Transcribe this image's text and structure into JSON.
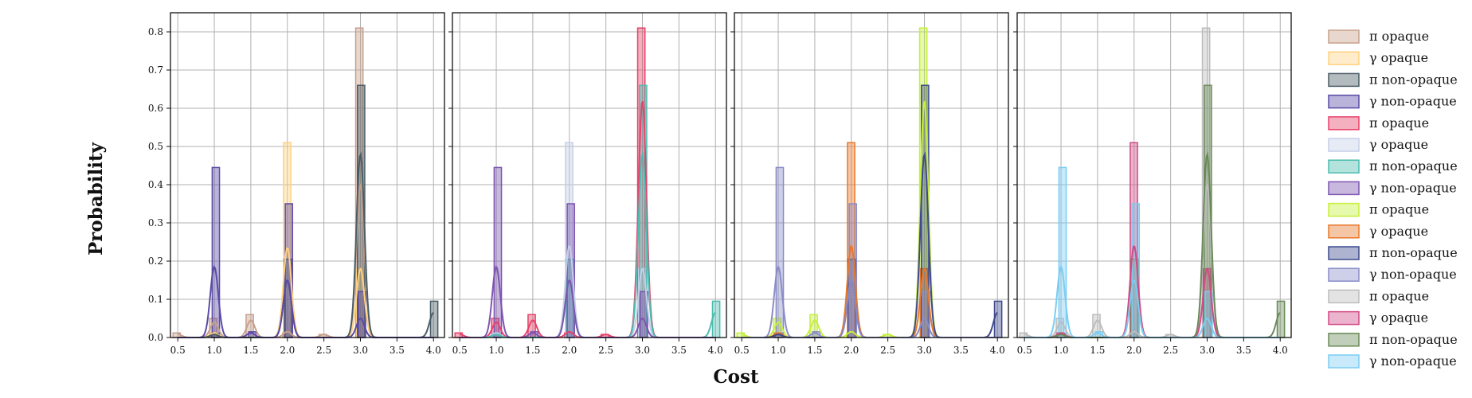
{
  "chart_data": {
    "type": "bar",
    "xlabel": "Cost",
    "ylabel": "Probability",
    "xlim": [
      0.4,
      4.15
    ],
    "ylim": [
      0,
      0.85
    ],
    "xticks": [
      "0.5",
      "1.0",
      "1.5",
      "2.0",
      "2.5",
      "3.0",
      "3.5",
      "4.0"
    ],
    "yticks": [
      "0.0",
      "0.1",
      "0.2",
      "0.3",
      "0.4",
      "0.5",
      "0.6",
      "0.7",
      "0.8"
    ],
    "grid": true,
    "legend_position": "right",
    "panels": [
      {
        "series": [
          {
            "name": "π opaque",
            "color": "#c8a08c",
            "hist": [
              [
                0.5,
                0.012
              ],
              [
                1.0,
                0.05
              ],
              [
                1.5,
                0.06
              ],
              [
                2.0,
                0.012
              ],
              [
                2.5,
                0.008
              ],
              [
                3.0,
                0.81
              ]
            ],
            "kde": [
              [
                0.5,
                0.008
              ],
              [
                1.0,
                0.04
              ],
              [
                1.5,
                0.045
              ],
              [
                2.0,
                0.015
              ],
              [
                2.5,
                0.008
              ],
              [
                3.0,
                0.4
              ]
            ]
          },
          {
            "name": "γ opaque",
            "color": "#ffd280",
            "hist": [
              [
                1.0,
                0.012
              ],
              [
                2.0,
                0.51
              ],
              [
                3.0,
                0.18
              ]
            ],
            "kde": [
              [
                1.0,
                0.012
              ],
              [
                2.0,
                0.235
              ],
              [
                3.0,
                0.18
              ]
            ]
          },
          {
            "name": "π non-opaque",
            "color": "#4a5d66",
            "hist": [
              [
                1.0,
                0.01
              ],
              [
                2.0,
                0.205
              ],
              [
                3.0,
                0.66
              ],
              [
                4.0,
                0.095
              ]
            ],
            "kde": [
              [
                1.0,
                0.008
              ],
              [
                2.0,
                0.15
              ],
              [
                3.0,
                0.48
              ],
              [
                4.0,
                0.065
              ]
            ]
          },
          {
            "name": "γ non-opaque",
            "color": "#5b4ba6",
            "hist": [
              [
                1.0,
                0.445
              ],
              [
                1.5,
                0.015
              ],
              [
                2.0,
                0.35
              ],
              [
                3.0,
                0.12
              ]
            ],
            "kde": [
              [
                1.0,
                0.185
              ],
              [
                1.5,
                0.012
              ],
              [
                2.0,
                0.15
              ],
              [
                3.0,
                0.05
              ]
            ]
          }
        ]
      },
      {
        "series": [
          {
            "name": "π opaque",
            "color": "#e8426a",
            "hist": [
              [
                0.5,
                0.012
              ],
              [
                1.0,
                0.05
              ],
              [
                1.5,
                0.06
              ],
              [
                2.0,
                0.012
              ],
              [
                2.5,
                0.008
              ],
              [
                3.0,
                0.81
              ]
            ],
            "kde": [
              [
                0.5,
                0.008
              ],
              [
                1.0,
                0.04
              ],
              [
                1.5,
                0.045
              ],
              [
                2.0,
                0.015
              ],
              [
                2.5,
                0.008
              ],
              [
                3.0,
                0.62
              ]
            ]
          },
          {
            "name": "γ opaque",
            "color": "#c5cfe8",
            "hist": [
              [
                1.0,
                0.012
              ],
              [
                2.0,
                0.51
              ],
              [
                3.0,
                0.18
              ]
            ],
            "kde": [
              [
                1.0,
                0.012
              ],
              [
                2.0,
                0.24
              ],
              [
                3.0,
                0.18
              ]
            ]
          },
          {
            "name": "π non-opaque",
            "color": "#4dbcb0",
            "hist": [
              [
                1.0,
                0.01
              ],
              [
                2.0,
                0.205
              ],
              [
                3.0,
                0.66
              ],
              [
                4.0,
                0.095
              ]
            ],
            "kde": [
              [
                1.0,
                0.008
              ],
              [
                2.0,
                0.15
              ],
              [
                3.0,
                0.48
              ],
              [
                4.0,
                0.065
              ]
            ]
          },
          {
            "name": "γ non-opaque",
            "color": "#7d55b0",
            "hist": [
              [
                1.0,
                0.445
              ],
              [
                1.5,
                0.015
              ],
              [
                2.0,
                0.35
              ],
              [
                3.0,
                0.12
              ]
            ],
            "kde": [
              [
                1.0,
                0.185
              ],
              [
                1.5,
                0.012
              ],
              [
                2.0,
                0.15
              ],
              [
                3.0,
                0.05
              ]
            ]
          }
        ]
      },
      {
        "series": [
          {
            "name": "π opaque",
            "color": "#c6f03c",
            "hist": [
              [
                0.5,
                0.012
              ],
              [
                1.0,
                0.05
              ],
              [
                1.5,
                0.06
              ],
              [
                2.0,
                0.012
              ],
              [
                2.5,
                0.008
              ],
              [
                3.0,
                0.81
              ]
            ],
            "kde": [
              [
                0.5,
                0.008
              ],
              [
                1.0,
                0.04
              ],
              [
                1.5,
                0.045
              ],
              [
                2.0,
                0.015
              ],
              [
                2.5,
                0.008
              ],
              [
                3.0,
                0.62
              ]
            ]
          },
          {
            "name": "γ opaque",
            "color": "#e8782a",
            "hist": [
              [
                1.0,
                0.012
              ],
              [
                2.0,
                0.51
              ],
              [
                3.0,
                0.18
              ]
            ],
            "kde": [
              [
                1.0,
                0.012
              ],
              [
                2.0,
                0.24
              ],
              [
                3.0,
                0.18
              ]
            ]
          },
          {
            "name": "π non-opaque",
            "color": "#3e4a8c",
            "hist": [
              [
                1.0,
                0.01
              ],
              [
                2.0,
                0.205
              ],
              [
                3.0,
                0.66
              ],
              [
                4.0,
                0.095
              ]
            ],
            "kde": [
              [
                1.0,
                0.008
              ],
              [
                2.0,
                0.15
              ],
              [
                3.0,
                0.48
              ],
              [
                4.0,
                0.065
              ]
            ]
          },
          {
            "name": "γ non-opaque",
            "color": "#8a8cc8",
            "hist": [
              [
                1.0,
                0.445
              ],
              [
                1.5,
                0.015
              ],
              [
                2.0,
                0.35
              ],
              [
                3.0,
                0.12
              ]
            ],
            "kde": [
              [
                1.0,
                0.185
              ],
              [
                1.5,
                0.012
              ],
              [
                2.0,
                0.15
              ],
              [
                3.0,
                0.05
              ]
            ]
          }
        ]
      },
      {
        "series": [
          {
            "name": "π opaque",
            "color": "#bdbdbd",
            "hist": [
              [
                0.5,
                0.012
              ],
              [
                1.0,
                0.05
              ],
              [
                1.5,
                0.06
              ],
              [
                2.0,
                0.012
              ],
              [
                2.5,
                0.008
              ],
              [
                3.0,
                0.81
              ]
            ],
            "kde": [
              [
                0.5,
                0.008
              ],
              [
                1.0,
                0.04
              ],
              [
                1.5,
                0.045
              ],
              [
                2.0,
                0.015
              ],
              [
                2.5,
                0.008
              ],
              [
                3.0,
                0.4
              ]
            ]
          },
          {
            "name": "γ opaque",
            "color": "#d24a86",
            "hist": [
              [
                1.0,
                0.012
              ],
              [
                2.0,
                0.51
              ],
              [
                3.0,
                0.18
              ]
            ],
            "kde": [
              [
                1.0,
                0.012
              ],
              [
                2.0,
                0.24
              ],
              [
                3.0,
                0.18
              ]
            ]
          },
          {
            "name": "π non-opaque",
            "color": "#6b8a5a",
            "hist": [
              [
                1.0,
                0.01
              ],
              [
                2.0,
                0.205
              ],
              [
                3.0,
                0.66
              ],
              [
                4.0,
                0.095
              ]
            ],
            "kde": [
              [
                1.0,
                0.008
              ],
              [
                2.0,
                0.15
              ],
              [
                3.0,
                0.48
              ],
              [
                4.0,
                0.065
              ]
            ]
          },
          {
            "name": "γ non-opaque",
            "color": "#7ccdf2",
            "hist": [
              [
                1.0,
                0.445
              ],
              [
                1.5,
                0.015
              ],
              [
                2.0,
                0.35
              ],
              [
                3.0,
                0.12
              ]
            ],
            "kde": [
              [
                1.0,
                0.185
              ],
              [
                1.5,
                0.012
              ],
              [
                2.0,
                0.15
              ],
              [
                3.0,
                0.05
              ]
            ]
          }
        ]
      }
    ]
  }
}
